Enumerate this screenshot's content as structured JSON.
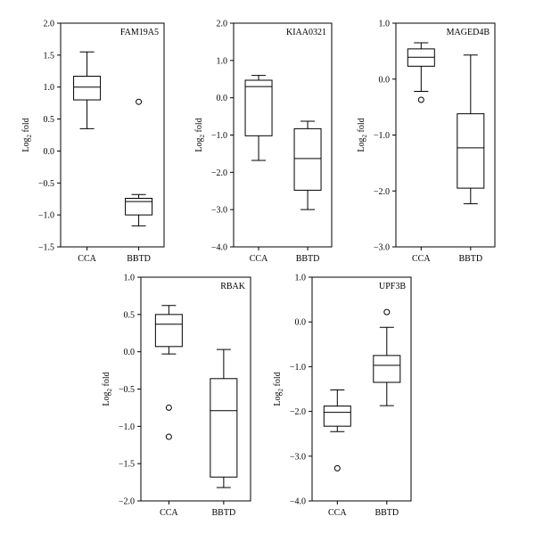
{
  "chart_data": [
    {
      "type": "box",
      "gene": "FAM19A5",
      "ylabel": "Log2 fold",
      "ylabel_base": "Log",
      "ylabel_sub": "2",
      "ylabel_rest": " fold",
      "ylim": [
        -1.5,
        2.0
      ],
      "yticks": [
        -1.5,
        -1.0,
        -0.5,
        0.0,
        0.5,
        1.0,
        1.5,
        2.0
      ],
      "ytick_labels": [
        "−1.5",
        "−1.0",
        "−0.5",
        "0.0",
        "0.5",
        "1.0",
        "1.5",
        "2.0"
      ],
      "categories": [
        "CCA",
        "BBTD"
      ],
      "boxes": [
        {
          "min": 0.35,
          "q1": 0.8,
          "median": 1.0,
          "q3": 1.17,
          "max": 1.55,
          "outliers": []
        },
        {
          "min": -1.17,
          "q1": -1.0,
          "median": -0.79,
          "q3": -0.74,
          "max": -0.68,
          "outliers": [
            0.77
          ]
        }
      ]
    },
    {
      "type": "box",
      "gene": "KIAA0321",
      "ylabel": "Log2 fold",
      "ylabel_base": "Log",
      "ylabel_sub": "2",
      "ylabel_rest": " fold",
      "ylim": [
        -4.0,
        2.0
      ],
      "yticks": [
        -4.0,
        -3.0,
        -2.0,
        -1.0,
        0.0,
        1.0,
        2.0
      ],
      "ytick_labels": [
        "−4.0",
        "−3.0",
        "−2.0",
        "−1.0",
        "0.0",
        "1.0",
        "2.0"
      ],
      "categories": [
        "CCA",
        "BBTD"
      ],
      "boxes": [
        {
          "min": -1.68,
          "q1": -1.02,
          "median": 0.3,
          "q3": 0.47,
          "max": 0.6,
          "outliers": []
        },
        {
          "min": -3.0,
          "q1": -2.48,
          "median": -1.63,
          "q3": -0.83,
          "max": -0.63,
          "outliers": []
        }
      ]
    },
    {
      "type": "box",
      "gene": "MAGED4B",
      "ylabel": "Log2 fold",
      "ylabel_base": "Log",
      "ylabel_sub": "2",
      "ylabel_rest": " fold",
      "ylim": [
        -3.0,
        1.0
      ],
      "yticks": [
        -3.0,
        -2.0,
        -1.0,
        0.0,
        1.0
      ],
      "ytick_labels": [
        "−3.0",
        "−2.0",
        "−1.0",
        "0.0",
        "1.0"
      ],
      "categories": [
        "CCA",
        "BBTD"
      ],
      "boxes": [
        {
          "min": -0.22,
          "q1": 0.23,
          "median": 0.39,
          "q3": 0.54,
          "max": 0.65,
          "outliers": [
            -0.37
          ]
        },
        {
          "min": -2.23,
          "q1": -1.95,
          "median": -1.23,
          "q3": -0.62,
          "max": 0.43,
          "outliers": []
        }
      ]
    },
    {
      "type": "box",
      "gene": "RBAK",
      "ylabel": "Log2 fold",
      "ylabel_base": "Log",
      "ylabel_sub": "2",
      "ylabel_rest": " fold",
      "ylim": [
        -2.0,
        1.0
      ],
      "yticks": [
        -2.0,
        -1.5,
        -1.0,
        -0.5,
        0.0,
        0.5,
        1.0
      ],
      "ytick_labels": [
        "−2.0",
        "−1.5",
        "−1.0",
        "−0.5",
        "0.0",
        "0.5",
        "1.0"
      ],
      "categories": [
        "CCA",
        "BBTD"
      ],
      "boxes": [
        {
          "min": -0.03,
          "q1": 0.07,
          "median": 0.37,
          "q3": 0.5,
          "max": 0.62,
          "outliers": [
            -0.75,
            -1.14
          ]
        },
        {
          "min": -1.82,
          "q1": -1.68,
          "median": -0.79,
          "q3": -0.36,
          "max": 0.03,
          "outliers": []
        }
      ]
    },
    {
      "type": "box",
      "gene": "UPF3B",
      "ylabel": "Log2 fold",
      "ylabel_base": "Log",
      "ylabel_sub": "2",
      "ylabel_rest": " fold",
      "ylim": [
        -4.0,
        1.0
      ],
      "yticks": [
        -4.0,
        -3.0,
        -2.0,
        -1.0,
        0.0,
        1.0
      ],
      "ytick_labels": [
        "−4.0",
        "−3.0",
        "−2.0",
        "−1.0",
        "0.0",
        "1.0"
      ],
      "categories": [
        "CCA",
        "BBTD"
      ],
      "boxes": [
        {
          "min": -2.45,
          "q1": -2.33,
          "median": -2.02,
          "q3": -1.88,
          "max": -1.52,
          "outliers": [
            -3.27
          ]
        },
        {
          "min": -1.87,
          "q1": -1.35,
          "median": -0.97,
          "q3": -0.75,
          "max": -0.12,
          "outliers": [
            0.22
          ]
        }
      ]
    }
  ]
}
